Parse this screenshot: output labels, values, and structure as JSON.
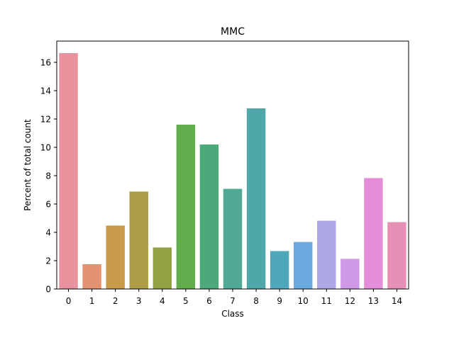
{
  "chart_data": {
    "type": "bar",
    "title": "MMC",
    "xlabel": "Class",
    "ylabel": "Percent of total count",
    "categories": [
      "0",
      "1",
      "2",
      "3",
      "4",
      "5",
      "6",
      "7",
      "8",
      "9",
      "10",
      "11",
      "12",
      "13",
      "14"
    ],
    "values": [
      16.65,
      1.75,
      4.48,
      6.88,
      2.93,
      11.6,
      10.2,
      7.07,
      12.75,
      2.68,
      3.32,
      4.82,
      2.13,
      7.83,
      4.72
    ],
    "colors": [
      "#e8929e",
      "#e29171",
      "#c89a49",
      "#ad9d47",
      "#93a043",
      "#62ad4b",
      "#4ca97a",
      "#4fa995",
      "#4fa7a9",
      "#4fa7bc",
      "#6aaae0",
      "#aea7e5",
      "#cf99e8",
      "#e48ed9",
      "#e78fb5"
    ],
    "ylim": [
      0,
      17.5
    ],
    "yticks": [
      0,
      2,
      4,
      6,
      8,
      10,
      12,
      14,
      16
    ],
    "grid": false
  }
}
